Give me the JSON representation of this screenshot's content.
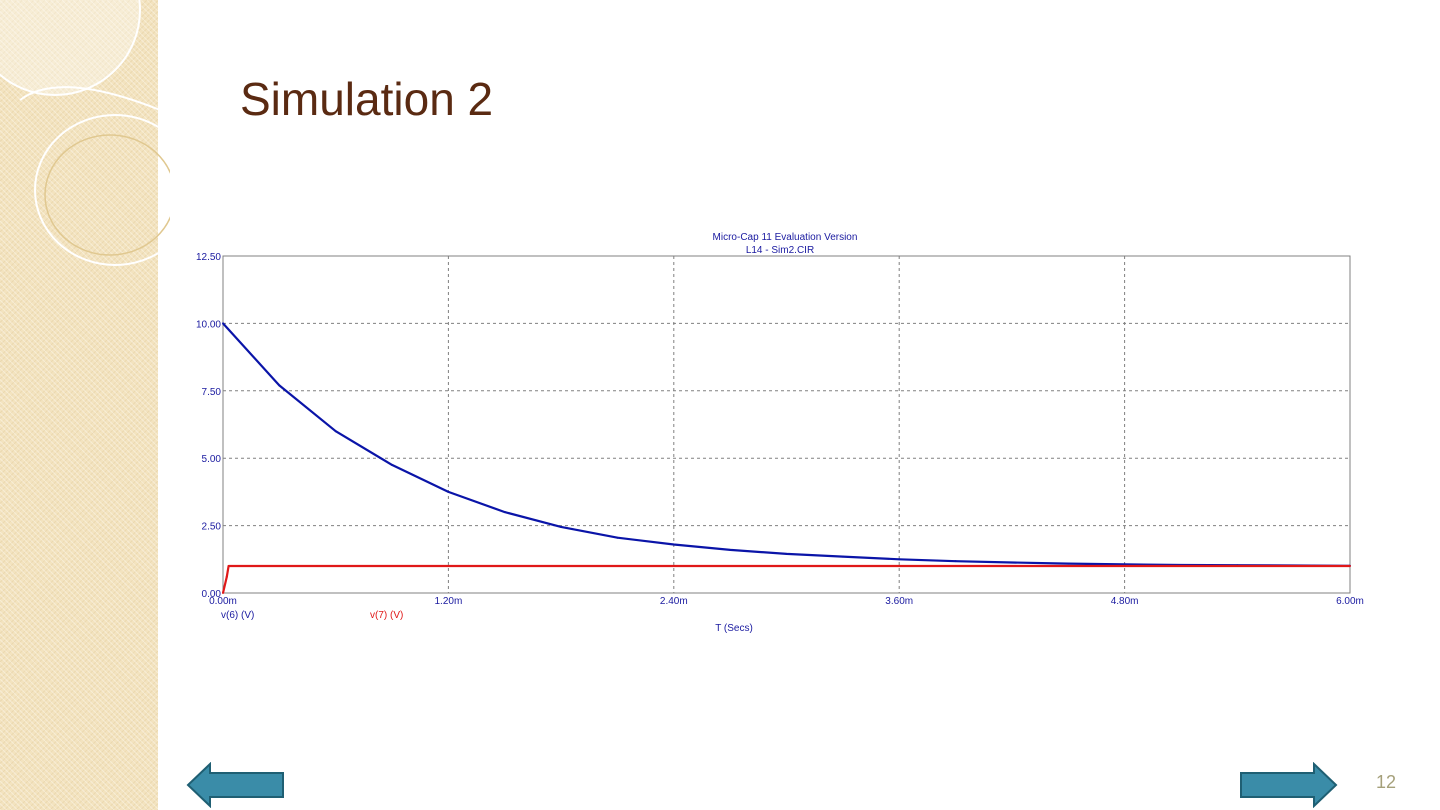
{
  "slide": {
    "title": "Simulation 2",
    "page_number": "12"
  },
  "navigation": {
    "prev_icon": "left-arrow-icon",
    "next_icon": "right-arrow-icon",
    "arrow_color": "#3a8ca8"
  },
  "colors": {
    "title": "#5a2a12",
    "sidebar": "#f3e3bf",
    "chart_text": "#1a1aa0",
    "blue_series": "#0a14a8",
    "red_series": "#e01818"
  },
  "chart_data": {
    "type": "line",
    "title": "Micro-Cap 11 Evaluation Version",
    "subtitle": "L14 - Sim2.CIR",
    "xlabel": "T (Secs)",
    "ylabel": "",
    "xlim": [
      0,
      6.0
    ],
    "ylim": [
      0,
      12.5
    ],
    "x_unit": "ms",
    "x_ticks": [
      0,
      1.2,
      2.4,
      3.6,
      4.8,
      6.0
    ],
    "x_tick_labels": [
      "0.00m",
      "1.20m",
      "2.40m",
      "3.60m",
      "4.80m",
      "6.00m"
    ],
    "y_ticks": [
      0,
      2.5,
      5.0,
      7.5,
      10.0,
      12.5
    ],
    "y_tick_labels": [
      "0.00",
      "2.50",
      "5.00",
      "7.50",
      "10.00",
      "12.50"
    ],
    "grid": true,
    "series": [
      {
        "name": "v(6) (V)",
        "color": "#0a14a8",
        "x": [
          0,
          0.3,
          0.6,
          0.9,
          1.2,
          1.5,
          1.8,
          2.1,
          2.4,
          2.7,
          3.0,
          3.3,
          3.6,
          3.9,
          4.2,
          4.5,
          4.8,
          5.1,
          5.4,
          5.7,
          6.0
        ],
        "values": [
          10.0,
          7.7,
          6.0,
          4.75,
          3.75,
          3.0,
          2.45,
          2.05,
          1.8,
          1.6,
          1.45,
          1.35,
          1.25,
          1.18,
          1.13,
          1.09,
          1.06,
          1.04,
          1.03,
          1.02,
          1.01
        ]
      },
      {
        "name": "v(7) (V)",
        "color": "#e01818",
        "x": [
          0,
          0.02,
          0.03,
          0.5,
          1.2,
          2.4,
          3.6,
          4.8,
          6.0
        ],
        "values": [
          0,
          0.6,
          1.0,
          1.0,
          1.0,
          1.0,
          1.0,
          1.0,
          1.0
        ]
      }
    ]
  }
}
